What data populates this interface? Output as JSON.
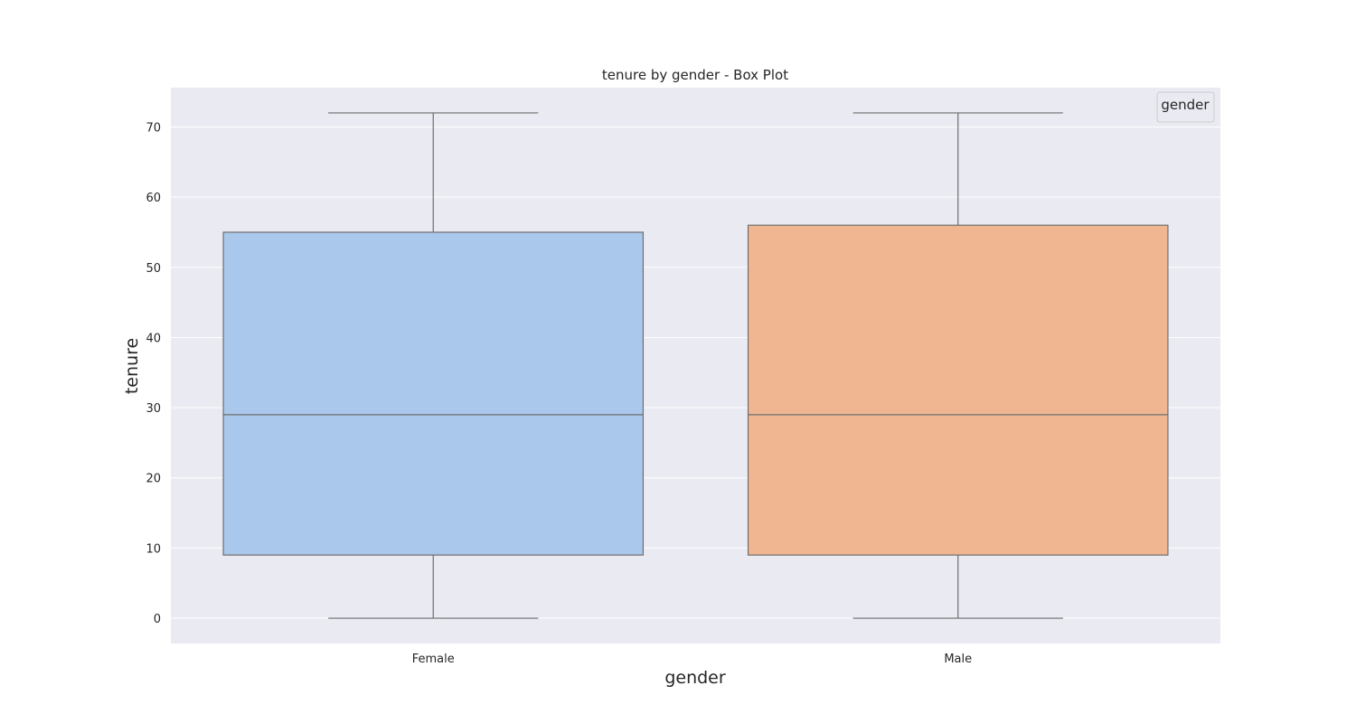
{
  "chart_data": {
    "type": "box",
    "title": "tenure by gender - Box Plot",
    "xlabel": "gender",
    "ylabel": "tenure",
    "categories": [
      "Female",
      "Male"
    ],
    "boxes": [
      {
        "category": "Female",
        "min": 0,
        "q1": 9,
        "median": 29,
        "q3": 55,
        "max": 72,
        "color": "#aac8eb"
      },
      {
        "category": "Male",
        "min": 0,
        "q1": 9,
        "median": 29,
        "q3": 56,
        "max": 72,
        "color": "#f0b691"
      }
    ],
    "y_ticks": [
      0,
      10,
      20,
      30,
      40,
      50,
      60,
      70
    ],
    "ylim": [
      -3.6,
      75.6
    ],
    "grid": true,
    "legend": {
      "title": "gender",
      "placement": "top-right"
    },
    "colors": {
      "background": "#eaeaf2",
      "grid": "#ffffff",
      "line": "#6e6e6e"
    }
  }
}
